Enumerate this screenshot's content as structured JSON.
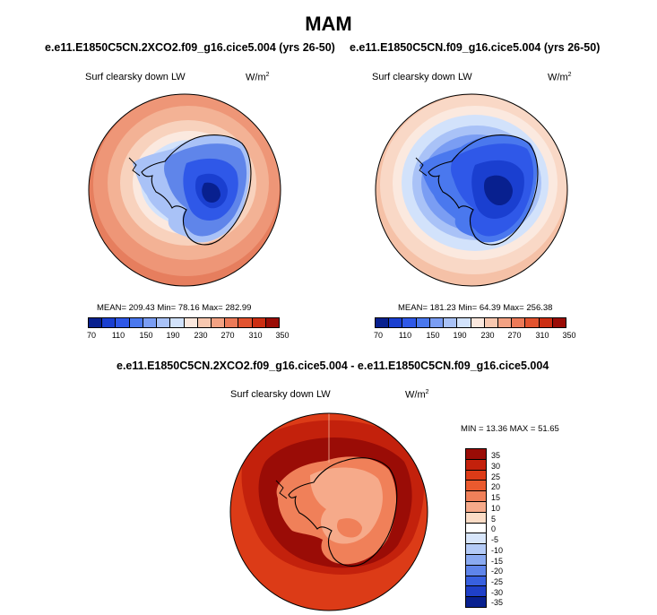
{
  "figure": {
    "season": "MAM"
  },
  "panels": [
    {
      "case_title": "e.e11.E1850C5CN.2XCO2.f09_g16.cice5.004 (yrs 26-50)",
      "variable": "Surf clearsky down LW",
      "units_base": "W/m",
      "units_exp": "2",
      "stats": "MEAN= 209.43  Min=  78.16  Max= 282.99",
      "colorbar_ticks": [
        "70",
        "110",
        "150",
        "190",
        "230",
        "270",
        "310",
        "350"
      ]
    },
    {
      "case_title": "e.e11.E1850C5CN.f09_g16.cice5.004 (yrs 26-50)",
      "variable": "Surf clearsky down LW",
      "units_base": "W/m",
      "units_exp": "2",
      "stats": "MEAN= 181.23  Min=  64.39  Max= 256.38",
      "colorbar_ticks": [
        "70",
        "110",
        "150",
        "190",
        "230",
        "270",
        "310",
        "350"
      ]
    }
  ],
  "difference": {
    "title": "e.e11.E1850C5CN.2XCO2.f09_g16.cice5.004 - e.e11.E1850C5CN.f09_g16.cice5.004",
    "variable": "Surf clearsky down LW",
    "units_base": "W/m",
    "units_exp": "2",
    "stats": "MIN =  13.36 MAX =  51.65",
    "colorbar_ticks": [
      "35",
      "30",
      "25",
      "20",
      "15",
      "10",
      "5",
      "0",
      "-5",
      "-10",
      "-15",
      "-20",
      "-25",
      "-30",
      "-35"
    ]
  },
  "colors": {
    "abs_scale": [
      "#08208f",
      "#1a3fd0",
      "#2f58e8",
      "#4a78ee",
      "#7a9df3",
      "#a9c2f7",
      "#d2e2fb",
      "#fbe8de",
      "#f8c8b0",
      "#f3a283",
      "#ec7a58",
      "#e2532f",
      "#cc2e12",
      "#9a0c06"
    ],
    "diff_scale": [
      "#9a0c06",
      "#c3210c",
      "#dc3b17",
      "#ea5a2e",
      "#f08059",
      "#f6aa8a",
      "#fbdcc6",
      "#ffffff",
      "#d8e6fb",
      "#b4cbf7",
      "#8aaaf1",
      "#5f85ea",
      "#3860df",
      "#1f40c8",
      "#08208f"
    ]
  }
}
